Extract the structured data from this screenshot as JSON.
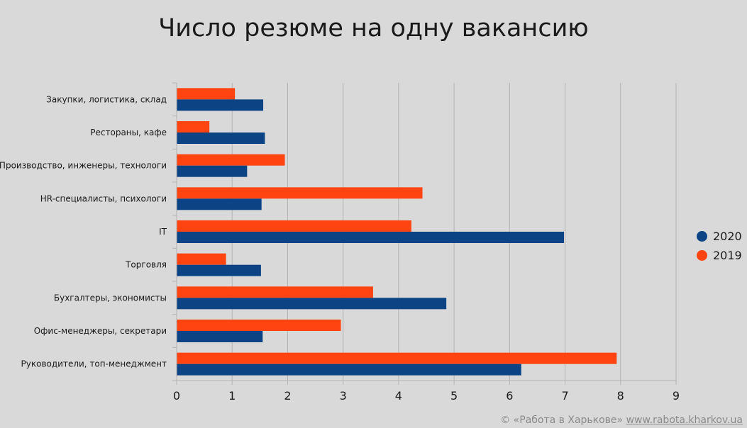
{
  "chart_data": {
    "type": "bar",
    "orientation": "horizontal",
    "title": "Число резюме на одну вакансию",
    "categories": [
      "Закупки, логистика, склад",
      "Рестораны, кафе",
      "Производство, инженеры, технологи",
      "HR-специалисты, психологи",
      "IT",
      "Торговля",
      "Бухгалтеры, экономисты",
      "Офис-менеджеры, секретари",
      "Руководители, топ-менеджмент"
    ],
    "series": [
      {
        "name": "2020",
        "color": "#0b4385",
        "values": [
          1.56,
          1.59,
          1.27,
          1.53,
          6.98,
          1.52,
          4.86,
          1.55,
          6.21
        ]
      },
      {
        "name": "2019",
        "color": "#ff4411",
        "values": [
          1.05,
          0.59,
          1.95,
          4.43,
          4.23,
          0.89,
          3.54,
          2.96,
          7.93
        ]
      }
    ],
    "xlim": [
      0,
      9
    ],
    "xticks": [
      "0",
      "1",
      "2",
      "3",
      "4",
      "5",
      "6",
      "7",
      "8",
      "9"
    ],
    "grid": true,
    "legend_position": "right"
  },
  "footer": {
    "copyright": "© «Работа в Харькове»",
    "link": "www.rabota.kharkov.ua"
  }
}
